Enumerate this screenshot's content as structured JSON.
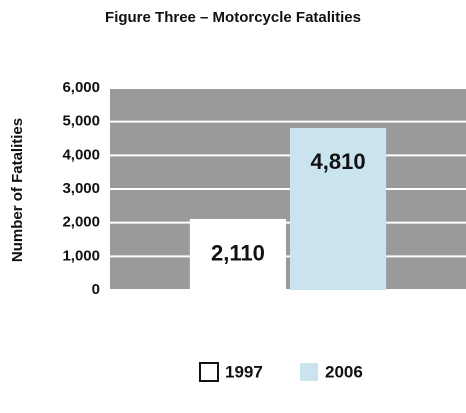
{
  "chart_data": {
    "type": "bar",
    "title": "Figure Three – Motorcycle Fatalities",
    "y_label": "Number of Fatalities",
    "categories": [
      null
    ],
    "series": [
      {
        "name": "1997",
        "color": "#ffffff",
        "values": [
          2110
        ],
        "value_labels": [
          "2,110"
        ]
      },
      {
        "name": "2006",
        "color": "#c9e4ef",
        "values": [
          4810
        ],
        "value_labels": [
          "4,810"
        ]
      }
    ],
    "ylim": [
      0,
      6000
    ],
    "yticks": [
      0,
      {
        "value": 1000,
        "label": "1,000"
      },
      {
        "value": 2000,
        "label": "2,000"
      },
      {
        "value": 3000,
        "label": "3,000"
      },
      {
        "value": 4000,
        "label": "4,000"
      },
      {
        "value": 5000,
        "label": "5,000"
      },
      {
        "value": 6000,
        "label": "6,000"
      }
    ],
    "grid": true,
    "background": "#9a9a9a"
  }
}
